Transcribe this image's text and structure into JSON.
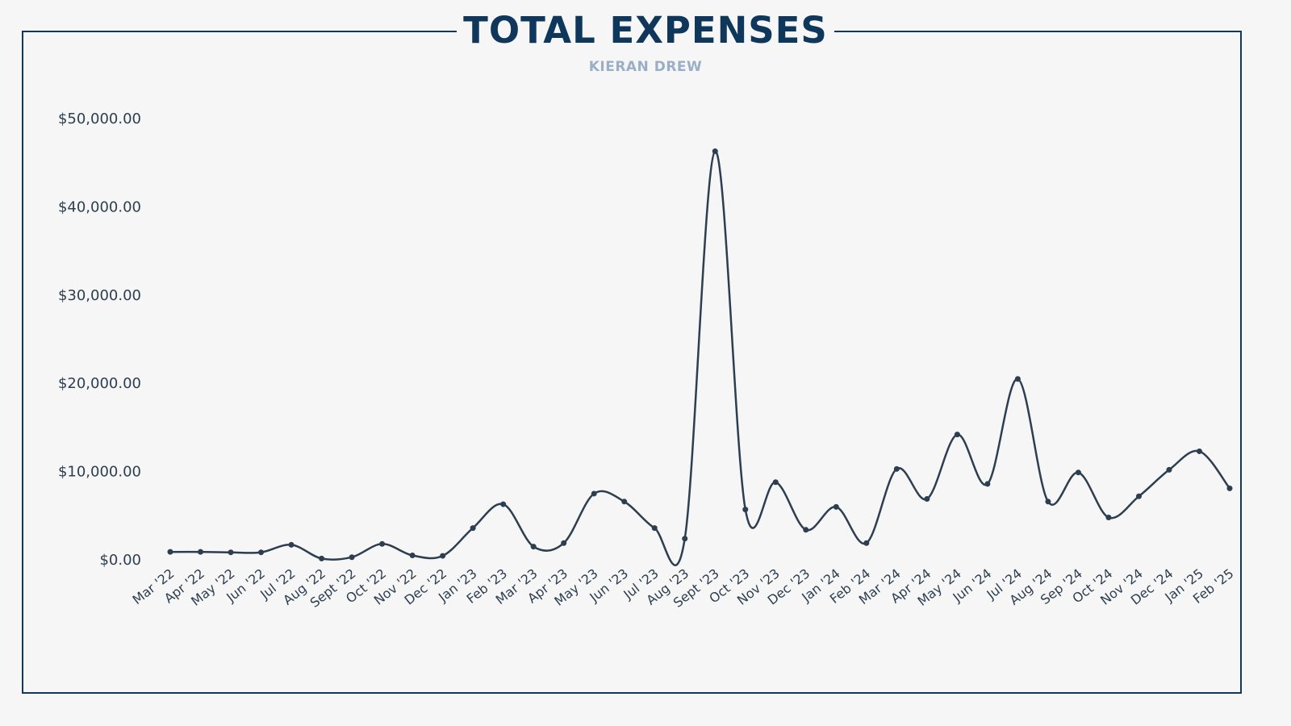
{
  "header": {
    "title": "TOTAL EXPENSES",
    "subtitle": "KIERAN DREW"
  },
  "colors": {
    "title": "#0f375c",
    "subtitle": "#9aafc6",
    "frame": "#12385e",
    "line": "#2d3e50",
    "background": "#f6f6f6"
  },
  "chart_data": {
    "type": "line",
    "title": "TOTAL EXPENSES",
    "subtitle": "KIERAN DREW",
    "xlabel": "",
    "ylabel": "",
    "ylim": [
      0,
      50000
    ],
    "yticks": [
      0,
      10000,
      20000,
      30000,
      40000,
      50000
    ],
    "ytick_labels": [
      "$0.00",
      "$10,000.00",
      "$20,000.00",
      "$30,000.00",
      "$40,000.00",
      "$50,000.00"
    ],
    "grid": false,
    "legend": "none",
    "smooth": true,
    "categories": [
      "Mar '22",
      "Apr '22",
      "May '22",
      "Jun '22",
      "Jul '22",
      "Aug '22",
      "Sept '22",
      "Oct '22",
      "Nov '22",
      "Dec '22",
      "Jan '23",
      "Feb '23",
      "Mar '23",
      "Apr '23",
      "May '23",
      "Jun '23",
      "Jul '23",
      "Aug '23",
      "Sept '23",
      "Oct '23",
      "Nov '23",
      "Dec '23",
      "Jan '24",
      "Feb '24",
      "Mar '24",
      "Apr '24",
      "May '24",
      "Jun '24",
      "Jul '24",
      "Aug '24",
      "Sep '24",
      "Oct '24",
      "Nov '24",
      "Dec '24",
      "Jan '25",
      "Feb '25"
    ],
    "values": [
      900,
      900,
      850,
      850,
      1700,
      150,
      300,
      1800,
      500,
      450,
      3600,
      6300,
      1500,
      1900,
      7500,
      6600,
      3600,
      2400,
      46300,
      5700,
      8800,
      3400,
      6000,
      1900,
      10300,
      6900,
      14200,
      8600,
      20500,
      6600,
      9900,
      4800,
      7200,
      10200,
      12300,
      8100
    ]
  }
}
